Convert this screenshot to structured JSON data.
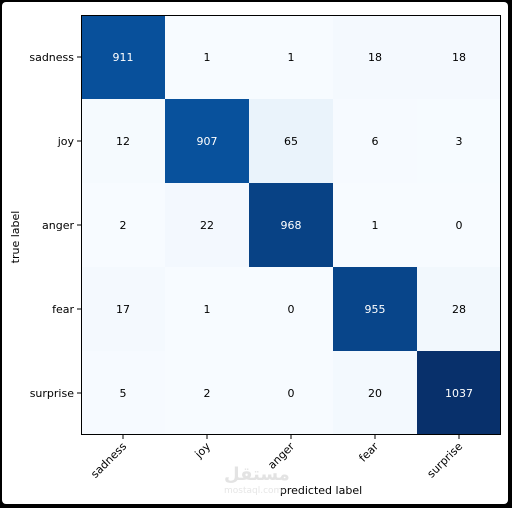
{
  "chart_data": {
    "type": "heatmap",
    "title": "",
    "xlabel": "predicted label",
    "ylabel": "true label",
    "x_categories": [
      "sadness",
      "joy",
      "anger",
      "fear",
      "surprise"
    ],
    "y_categories": [
      "sadness",
      "joy",
      "anger",
      "fear",
      "surprise"
    ],
    "values": [
      [
        911,
        1,
        1,
        18,
        18
      ],
      [
        12,
        907,
        65,
        6,
        3
      ],
      [
        2,
        22,
        968,
        1,
        0
      ],
      [
        17,
        1,
        0,
        955,
        28
      ],
      [
        5,
        2,
        0,
        20,
        1037
      ]
    ],
    "colormap": "Blues",
    "colors": {
      "low": "#f7fbff",
      "high": "#08306b"
    },
    "grid": false,
    "legend": "none"
  },
  "watermark": {
    "text": "مستقل",
    "sub": "mostaql.com"
  }
}
